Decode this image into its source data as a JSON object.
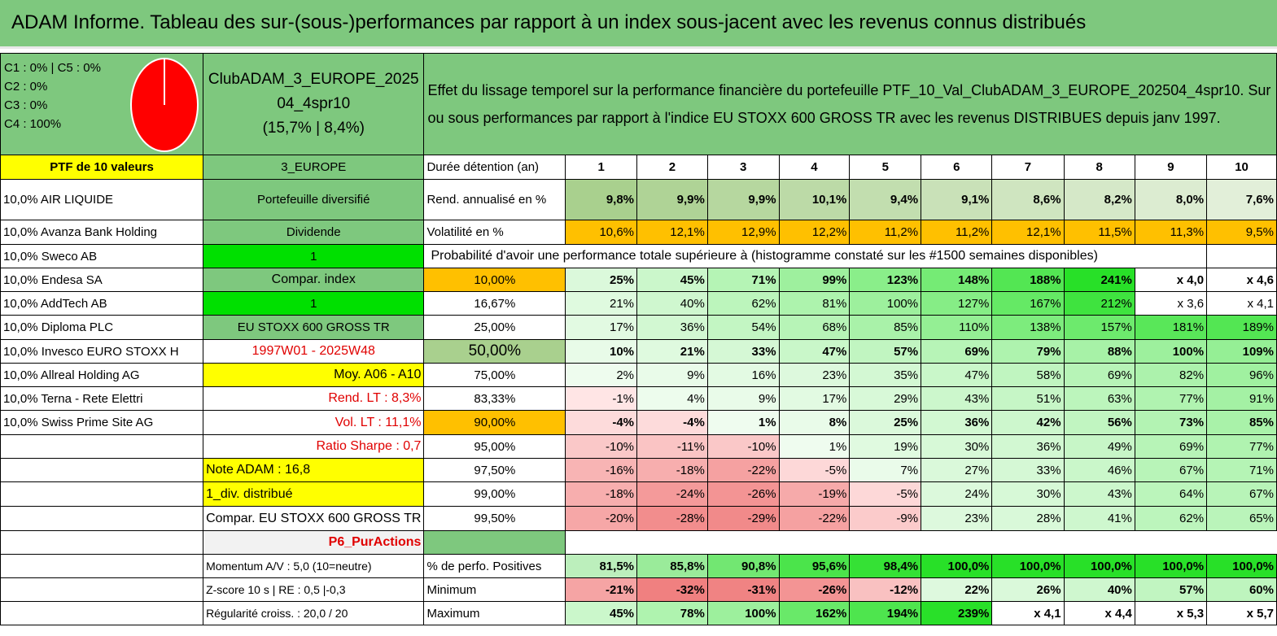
{
  "title": "ADAM Informe. Tableau des sur-(sous-)performances par rapport à un index sous-jacent avec les revenus connus distribués",
  "legend": [
    "C1 : 0% | C5 : 0%",
    "C2 : 0%",
    "C3 : 0%",
    "C4 : 100%"
  ],
  "pie": {
    "slices": [
      {
        "label": "C4",
        "value": 100,
        "color": "#ff0000"
      }
    ]
  },
  "portfolio_name": "ClubADAM_3_EUROPE_202504_4spr10",
  "portfolio_stats": "(15,7% | 8,4%)",
  "description": "Effet du lissage temporel sur la performance financière du portefeuille PTF_10_Val_ClubADAM_3_EUROPE_202504_4spr10. Sur ou sous performances par rapport à l'indice EU STOXX 600 GROSS TR avec les revenus DISTRIBUES depuis janv 1997.",
  "ptf_label": "PTF de 10 valeurs",
  "region": "3_EUROPE",
  "duration_label": "Durée détention (an)",
  "years": [
    "1",
    "2",
    "3",
    "4",
    "5",
    "6",
    "7",
    "8",
    "9",
    "10"
  ],
  "holdings": [
    "10,0% AIR LIQUIDE",
    "10,0% Avanza Bank Holding",
    "10,0% Sweco AB",
    "10,0% Endesa SA",
    "10,0% AddTech AB",
    "10,0% Diploma PLC",
    "10,0% Invesco EURO STOXX H",
    "10,0% Allreal Holding AG",
    "10,0% Terna - Rete Elettri",
    "10,0% Swiss Prime Site AG"
  ],
  "side": {
    "portfolio_type": "Portefeuille diversifié",
    "dividend_label": "Dividende",
    "dividend_value": "1",
    "compar_index_label": "Compar. index",
    "compar_index_value": "1",
    "index_name": "EU STOXX 600 GROSS TR",
    "period": "1997W01 - 2025W48",
    "moy": "Moy. A06 - A10",
    "rend_lt": "Rend. LT : 8,3%",
    "vol_lt": "Vol. LT : 11,1%",
    "sharpe": "Ratio Sharpe : 0,7",
    "note": "Note ADAM : 16,8",
    "div": "1_div. distribué",
    "compar": "Compar. EU STOXX 600 GROSS TR",
    "p6": "P6_PurActions",
    "momentum": "Momentum A/V : 5,0 (10=neutre)",
    "zscore": "Z-score 10 s | RE : 0,5 |-0,3",
    "regularite": "Régularité croiss. : 20,0 / 20"
  },
  "rend": {
    "label": "Rend. annualisé en %",
    "values": [
      "9,8%",
      "9,9%",
      "9,9%",
      "10,1%",
      "9,4%",
      "9,1%",
      "8,6%",
      "8,2%",
      "8,0%",
      "7,6%"
    ]
  },
  "vol": {
    "label": "Volatilité en %",
    "values": [
      "10,6%",
      "12,1%",
      "12,9%",
      "12,2%",
      "11,2%",
      "11,2%",
      "12,1%",
      "11,5%",
      "11,3%",
      "9,5%"
    ]
  },
  "prob_title": "Probabilité d'avoir une performance totale supérieure à (histogramme constaté sur les #1500 semaines disponibles)",
  "quantiles": [
    {
      "p": "10,00%",
      "v": [
        "25%",
        "45%",
        "71%",
        "99%",
        "123%",
        "148%",
        "188%",
        "241%",
        "x 4,0",
        "x 4,6"
      ]
    },
    {
      "p": "16,67%",
      "v": [
        "21%",
        "40%",
        "62%",
        "81%",
        "100%",
        "127%",
        "167%",
        "212%",
        "x 3,6",
        "x 4,1"
      ]
    },
    {
      "p": "25,00%",
      "v": [
        "17%",
        "36%",
        "54%",
        "68%",
        "85%",
        "110%",
        "138%",
        "157%",
        "181%",
        "189%"
      ]
    },
    {
      "p": "50,00%",
      "v": [
        "10%",
        "21%",
        "33%",
        "47%",
        "57%",
        "69%",
        "79%",
        "88%",
        "100%",
        "109%"
      ]
    },
    {
      "p": "75,00%",
      "v": [
        "2%",
        "9%",
        "16%",
        "23%",
        "35%",
        "47%",
        "58%",
        "69%",
        "82%",
        "96%"
      ]
    },
    {
      "p": "83,33%",
      "v": [
        "-1%",
        "4%",
        "9%",
        "17%",
        "29%",
        "43%",
        "51%",
        "63%",
        "77%",
        "91%"
      ]
    },
    {
      "p": "90,00%",
      "v": [
        "-4%",
        "-4%",
        "1%",
        "8%",
        "25%",
        "36%",
        "42%",
        "56%",
        "73%",
        "85%"
      ]
    },
    {
      "p": "95,00%",
      "v": [
        "-10%",
        "-11%",
        "-10%",
        "1%",
        "19%",
        "30%",
        "36%",
        "49%",
        "69%",
        "77%"
      ]
    },
    {
      "p": "97,50%",
      "v": [
        "-16%",
        "-18%",
        "-22%",
        "-5%",
        "7%",
        "27%",
        "33%",
        "46%",
        "67%",
        "71%"
      ]
    },
    {
      "p": "99,00%",
      "v": [
        "-18%",
        "-24%",
        "-26%",
        "-19%",
        "-5%",
        "24%",
        "30%",
        "43%",
        "64%",
        "67%"
      ]
    },
    {
      "p": "99,50%",
      "v": [
        "-20%",
        "-28%",
        "-29%",
        "-22%",
        "-9%",
        "23%",
        "28%",
        "41%",
        "62%",
        "65%"
      ]
    }
  ],
  "positives": {
    "label": "% de perfo. Positives",
    "values": [
      "81,5%",
      "85,8%",
      "90,8%",
      "95,6%",
      "98,4%",
      "100,0%",
      "100,0%",
      "100,0%",
      "100,0%",
      "100,0%"
    ]
  },
  "minimum": {
    "label": "Minimum",
    "values": [
      "-21%",
      "-32%",
      "-31%",
      "-26%",
      "-12%",
      "22%",
      "26%",
      "40%",
      "57%",
      "60%"
    ]
  },
  "maximum": {
    "label": "Maximum",
    "values": [
      "45%",
      "78%",
      "100%",
      "162%",
      "194%",
      "239%",
      "x 4,1",
      "x 4,4",
      "x 5,3",
      "x 5,7"
    ]
  },
  "colors": {
    "header_green": "#7ec87e",
    "yellow": "#ffff00",
    "orange": "#ffc000",
    "bright_green": "#00e000",
    "red_text": "#e00000",
    "pie_red": "#ff0000"
  }
}
